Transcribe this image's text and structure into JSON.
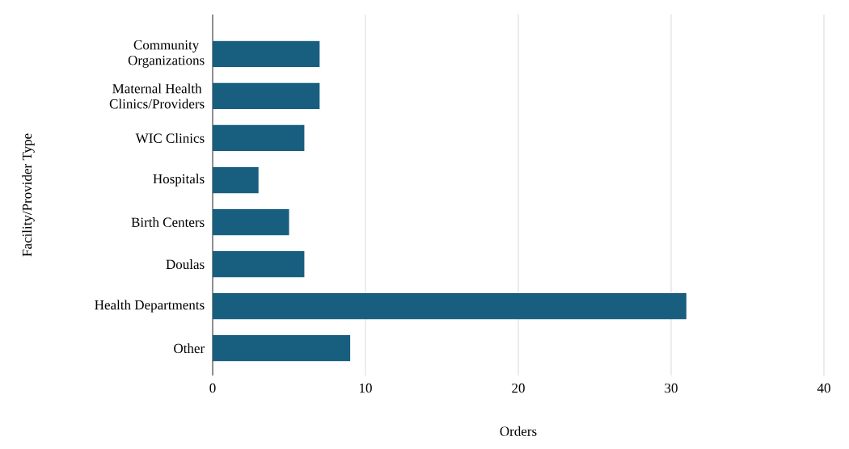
{
  "chart_data": {
    "type": "bar",
    "orientation": "horizontal",
    "xlabel": "Orders",
    "ylabel": "Facility/Provider Type",
    "categories": [
      "Community Organizations",
      "Maternal Health Clinics/Providers",
      "WIC Clinics",
      "Hospitals",
      "Birth Centers",
      "Doulas",
      "Health Departments",
      "Other"
    ],
    "values": [
      7,
      7,
      6,
      3,
      5,
      6,
      31,
      9
    ],
    "color": "#175e7f",
    "xlim": [
      0,
      40
    ],
    "xticks": [
      0,
      10,
      20,
      30,
      40
    ],
    "grid": "x"
  }
}
